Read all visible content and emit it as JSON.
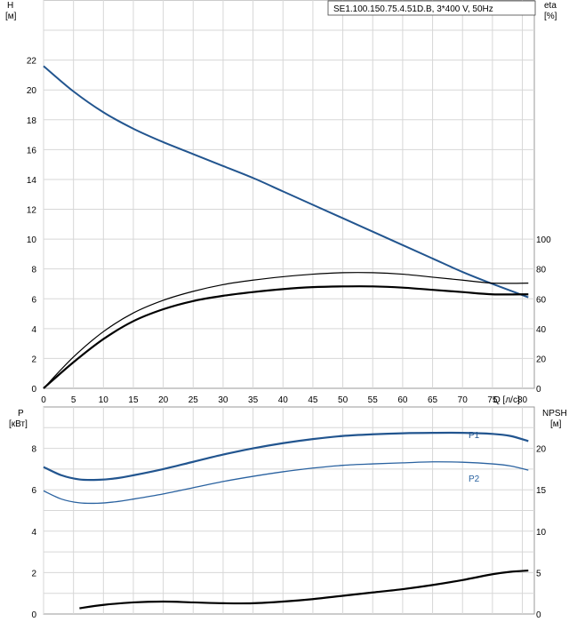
{
  "chart_data": [
    {
      "type": "line",
      "title": "SE1.100.150.75.4.51D.B, 3*400 V, 50Hz",
      "xlabel": "Q [л/с]",
      "ylabel": [
        "H",
        "[м]"
      ],
      "y2label": [
        "eta",
        "[%]"
      ],
      "xlim": [
        0,
        82
      ],
      "ylim": [
        0,
        24
      ],
      "y2lim": [
        0,
        140
      ],
      "x_ticks": [
        "0",
        "5",
        "10",
        "15",
        "20",
        "25",
        "30",
        "35",
        "40",
        "45",
        "50",
        "55",
        "60",
        "65",
        "70",
        "75",
        "80"
      ],
      "y_ticks": [
        "0",
        "2",
        "4",
        "6",
        "8",
        "10",
        "12",
        "14",
        "16",
        "18",
        "20",
        "22"
      ],
      "y2_ticks": [
        "0",
        "20",
        "40",
        "60",
        "80",
        "100"
      ],
      "grid": true,
      "series": [
        {
          "axis": "left",
          "color": "#22558f",
          "points": [
            [
              0,
              21.6
            ],
            [
              5,
              19.9
            ],
            [
              10,
              18.5
            ],
            [
              15,
              17.4
            ],
            [
              20,
              16.5
            ],
            [
              25,
              15.7
            ],
            [
              30,
              14.9
            ],
            [
              35,
              14.1
            ],
            [
              40,
              13.2
            ],
            [
              45,
              12.3
            ],
            [
              50,
              11.4
            ],
            [
              55,
              10.5
            ],
            [
              60,
              9.6
            ],
            [
              65,
              8.7
            ],
            [
              70,
              7.8
            ],
            [
              75,
              7.0
            ],
            [
              81,
              6.1
            ]
          ]
        },
        {
          "axis": "right",
          "color": "#000000",
          "points": [
            [
              0,
              0
            ],
            [
              5,
              17.5
            ],
            [
              10,
              33
            ],
            [
              15,
              45
            ],
            [
              20,
              53
            ],
            [
              25,
              58.5
            ],
            [
              30,
              62
            ],
            [
              35,
              64.5
            ],
            [
              40,
              66.5
            ],
            [
              45,
              67.8
            ],
            [
              50,
              68.3
            ],
            [
              55,
              68.3
            ],
            [
              60,
              67.5
            ],
            [
              65,
              66
            ],
            [
              70,
              64.5
            ],
            [
              75,
              63
            ],
            [
              81,
              63
            ]
          ]
        },
        {
          "axis": "right",
          "color": "#000000",
          "points": [
            [
              0,
              0
            ],
            [
              5,
              21
            ],
            [
              10,
              38
            ],
            [
              15,
              50.5
            ],
            [
              20,
              59
            ],
            [
              25,
              65
            ],
            [
              30,
              69.5
            ],
            [
              35,
              72.5
            ],
            [
              40,
              74.8
            ],
            [
              45,
              76.5
            ],
            [
              50,
              77.5
            ],
            [
              55,
              77.5
            ],
            [
              60,
              76.5
            ],
            [
              65,
              74.5
            ],
            [
              70,
              72.5
            ],
            [
              75,
              70.5
            ],
            [
              81,
              70.5
            ]
          ]
        }
      ]
    },
    {
      "type": "line",
      "xlim": [
        0,
        82
      ],
      "ylabel": [
        "P",
        "[кВт]"
      ],
      "y2label": [
        "NPSH",
        "[м]"
      ],
      "ylim": [
        0,
        10
      ],
      "y2lim": [
        0,
        25
      ],
      "y_ticks": [
        "0",
        "2",
        "4",
        "6",
        "8"
      ],
      "y2_ticks": [
        "0",
        "5",
        "10",
        "15",
        "20"
      ],
      "grid": true,
      "series": [
        {
          "name": "P1",
          "axis": "left",
          "color": "#22558f",
          "points": [
            [
              0,
              7.1
            ],
            [
              3,
              6.7
            ],
            [
              6,
              6.5
            ],
            [
              9,
              6.48
            ],
            [
              12,
              6.55
            ],
            [
              15,
              6.7
            ],
            [
              20,
              7.0
            ],
            [
              25,
              7.35
            ],
            [
              30,
              7.7
            ],
            [
              35,
              8.0
            ],
            [
              40,
              8.25
            ],
            [
              45,
              8.45
            ],
            [
              50,
              8.6
            ],
            [
              55,
              8.68
            ],
            [
              60,
              8.73
            ],
            [
              65,
              8.75
            ],
            [
              70,
              8.75
            ],
            [
              75,
              8.7
            ],
            [
              78,
              8.6
            ],
            [
              81,
              8.35
            ]
          ]
        },
        {
          "name": "P2",
          "axis": "left",
          "color": "#2a62a0",
          "points": [
            [
              0,
              5.95
            ],
            [
              3,
              5.55
            ],
            [
              6,
              5.37
            ],
            [
              9,
              5.35
            ],
            [
              12,
              5.42
            ],
            [
              15,
              5.55
            ],
            [
              20,
              5.8
            ],
            [
              25,
              6.1
            ],
            [
              30,
              6.4
            ],
            [
              35,
              6.65
            ],
            [
              40,
              6.87
            ],
            [
              45,
              7.05
            ],
            [
              50,
              7.18
            ],
            [
              55,
              7.25
            ],
            [
              60,
              7.3
            ],
            [
              65,
              7.35
            ],
            [
              70,
              7.33
            ],
            [
              75,
              7.25
            ],
            [
              78,
              7.15
            ],
            [
              81,
              6.95
            ]
          ]
        },
        {
          "axis": "right",
          "color": "#000000",
          "points": [
            [
              6,
              0.7
            ],
            [
              10,
              1.1
            ],
            [
              15,
              1.4
            ],
            [
              20,
              1.5
            ],
            [
              25,
              1.4
            ],
            [
              30,
              1.3
            ],
            [
              35,
              1.3
            ],
            [
              40,
              1.5
            ],
            [
              45,
              1.8
            ],
            [
              50,
              2.2
            ],
            [
              55,
              2.6
            ],
            [
              60,
              3.0
            ],
            [
              65,
              3.5
            ],
            [
              70,
              4.1
            ],
            [
              75,
              4.8
            ],
            [
              78,
              5.1
            ],
            [
              81,
              5.25
            ]
          ]
        }
      ]
    }
  ]
}
